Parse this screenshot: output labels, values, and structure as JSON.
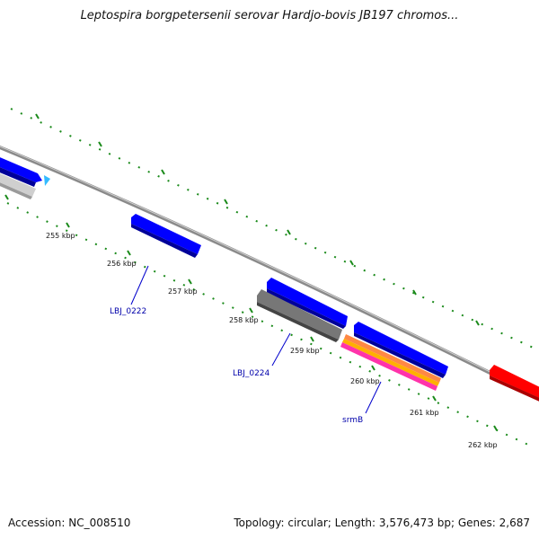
{
  "title": "Leptospira borgpetersenii serovar Hardjo-bovis JB197 chromos...",
  "footer": {
    "accession": "Accession: NC_008510",
    "summary": "Topology: circular; Length: 3,576,473 bp; Genes: 2,687"
  },
  "scale_labels": [
    "255 kbp",
    "256 kbp",
    "257 kbp",
    "258 kbp",
    "259 kbp",
    "260 kbp",
    "261 kbp",
    "262 kbp"
  ],
  "gene_labels": [
    "LBJ_0222",
    "LBJ_0224",
    "srmB"
  ],
  "colors": {
    "forward_gene": "#0000ff",
    "reverse_gene_gray": "#666666",
    "reverse_gene_light": "#bdbdbd",
    "highlight_red": "#ff0000",
    "srmB_band_top": "#ff8844",
    "srmB_band_bottom": "#ff33aa",
    "tick_green": "#1a8a1a",
    "backbone": "#8a8a8a",
    "label_blue": "#0000aa",
    "cyan_marker": "#33bbff"
  }
}
